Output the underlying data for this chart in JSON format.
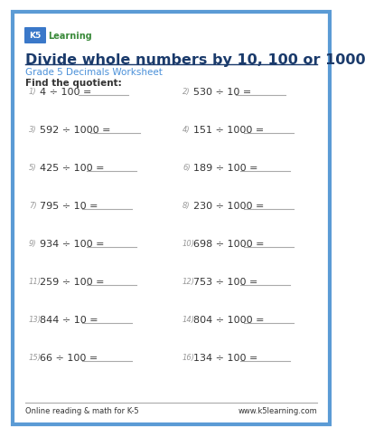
{
  "title": "Divide whole numbers by 10, 100 or 1000",
  "subtitle": "Grade 5 Decimals Worksheet",
  "instruction": "Find the quotient:",
  "title_color": "#1a3a6b",
  "subtitle_color": "#4a90d9",
  "body_color": "#333333",
  "bg_color": "#ffffff",
  "border_color": "#5b9bd5",
  "footer_left": "Online reading & math for K-5",
  "footer_right": "www.k5learning.com",
  "problems": [
    [
      "4 ÷ 100 =",
      "530 ÷ 10 ="
    ],
    [
      "592 ÷ 1000 =",
      "151 ÷ 1000 ="
    ],
    [
      "425 ÷ 100 =",
      "189 ÷ 100 ="
    ],
    [
      "795 ÷ 10 =",
      "230 ÷ 1000 ="
    ],
    [
      "934 ÷ 100 =",
      "698 ÷ 1000 ="
    ],
    [
      "259 ÷ 100 =",
      "753 ÷ 100 ="
    ],
    [
      "844 ÷ 10 =",
      "804 ÷ 1000 ="
    ],
    [
      "66 ÷ 100 =",
      "134 ÷ 100 ="
    ]
  ],
  "numbers": [
    [
      "1)",
      "2)"
    ],
    [
      "3)",
      "4)"
    ],
    [
      "5)",
      "6)"
    ],
    [
      "7)",
      "8)"
    ],
    [
      "9)",
      "10)"
    ],
    [
      "11)",
      "12)"
    ],
    [
      "13)",
      "14)"
    ],
    [
      "15)",
      "16)"
    ]
  ],
  "num_color": "#999999",
  "line_color": "#aaaaaa",
  "logo_k5_color": "#2060a0",
  "logo_learn_color": "#3a8a3a"
}
